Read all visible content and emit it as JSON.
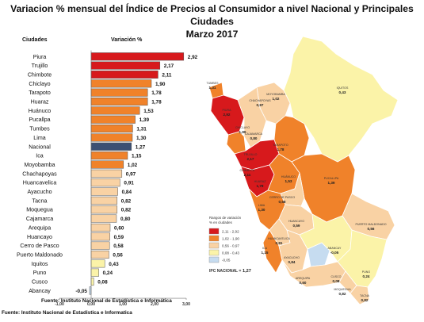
{
  "title_line1": "Variacion % mensual del Índice de Precios al Consumidor a nivel Nacional y Principales Ciudades",
  "title_line2": "Marzo 2017",
  "col_city": "Ciudades",
  "col_var": "Variación %",
  "source_chart": "Fuente: Instituto Nacional de Estadística e Informática",
  "source_page": "Fuente: Instituto Nacional de Estadistica e Informatica",
  "chart_data": {
    "type": "bar",
    "orientation": "horizontal",
    "categories": [
      "Piura",
      "Trujillo",
      "Chimbote",
      "Chiclayo",
      "Tarapoto",
      "Huaraz",
      "Huánuco",
      "Pucallpa",
      "Tumbes",
      "Lima",
      "Nacional",
      "Ica",
      "Moyobamba",
      "Chachapoyas",
      "Huancavelica",
      "Ayacucho",
      "Tacna",
      "Moquegua",
      "Cajamarca",
      "Arequipa",
      "Huancayo",
      "Cerro de Pasco",
      "Puerto Maldonado",
      "Iquitos",
      "Puno",
      "Cusco",
      "Abancay"
    ],
    "values": [
      2.92,
      2.17,
      2.11,
      1.9,
      1.78,
      1.78,
      1.53,
      1.39,
      1.31,
      1.3,
      1.27,
      1.15,
      1.02,
      0.97,
      0.91,
      0.84,
      0.82,
      0.82,
      0.8,
      0.6,
      0.59,
      0.58,
      0.56,
      0.43,
      0.24,
      0.08,
      -0.05
    ],
    "value_labels": [
      "2,92",
      "2,17",
      "2,11",
      "1,90",
      "1,78",
      "1,78",
      "1,53",
      "1,39",
      "1,31",
      "1,30",
      "1,27",
      "1,15",
      "1,02",
      "0,97",
      "0,91",
      "0,84",
      "0,82",
      "0,82",
      "0,80",
      "0,60",
      "0,59",
      "0,58",
      "0,56",
      "0,43",
      "0,24",
      "0,08",
      "-0,05"
    ],
    "xlim": [
      -1,
      3
    ],
    "x_ticks": [
      -1,
      0,
      1,
      2,
      3
    ],
    "x_tick_labels": [
      "-1,00",
      "0,00",
      "1,00",
      "2,00",
      "3,00"
    ],
    "colors": {
      "range_high": "#d7191c",
      "range_midhigh": "#f0822a",
      "range_mid": "#f9d2a4",
      "range_low": "#fbf3a8",
      "range_neg": "#c6dcf0",
      "nacional": "#3b4f73"
    }
  },
  "map": {
    "labels": [
      {
        "name": "TUMBES",
        "value": "1,31"
      },
      {
        "name": "PIURA",
        "value": "2,92"
      },
      {
        "name": "CHACHAPOYAS",
        "value": "0,97"
      },
      {
        "name": "MOYOBAMBA",
        "value": "1,02"
      },
      {
        "name": "IQUITOS",
        "value": "0,43"
      },
      {
        "name": "CHICLAYO",
        "value": "1,90"
      },
      {
        "name": "CAJAMARCA",
        "value": "0,80"
      },
      {
        "name": "TRUJILLO",
        "value": "2,17"
      },
      {
        "name": "TARAPOTO",
        "value": "1,78"
      },
      {
        "name": "CHIMBOTE",
        "value": "2,11"
      },
      {
        "name": "HUARAZ",
        "value": "1,78"
      },
      {
        "name": "HUÁNUCO",
        "value": "1,53"
      },
      {
        "name": "PUCALLPA",
        "value": "1,39"
      },
      {
        "name": "CERRO DE PASCO",
        "value": "0,58"
      },
      {
        "name": "LIMA",
        "value": "1,30"
      },
      {
        "name": "HUANCAYO",
        "value": "0,59"
      },
      {
        "name": "HUANCAVELICA",
        "value": "0,91"
      },
      {
        "name": "PUERTO MALDONADO",
        "value": "0,56"
      },
      {
        "name": "ICA",
        "value": "1,15"
      },
      {
        "name": "AYACUCHO",
        "value": "0,84"
      },
      {
        "name": "ABANCAY",
        "value": "-0,05"
      },
      {
        "name": "CUSCO",
        "value": "0,08"
      },
      {
        "name": "AREQUIPA",
        "value": "0,60"
      },
      {
        "name": "PUNO",
        "value": "0,24"
      },
      {
        "name": "MOQUEGUA",
        "value": "0,82"
      },
      {
        "name": "TACNA",
        "value": "0,82"
      }
    ],
    "legend_title_1": "Rangos de variación",
    "legend_title_2": "% en ciudades",
    "legend_ranges": [
      "2,11 - 2,92",
      "1,02 - 1,90",
      "0,56 - 0,97",
      "0,08 - 0,43",
      "-0,05"
    ],
    "ipc_label": "IPC NACIONAL =",
    "ipc_value": "1,27"
  }
}
